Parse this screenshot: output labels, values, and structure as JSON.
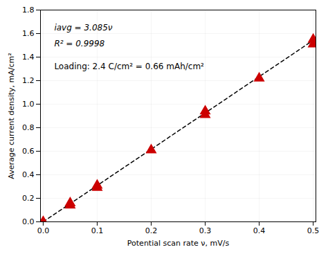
{
  "chart_data": {
    "type": "scatter",
    "xlabel": "Potential scan rate ν, mV/s",
    "ylabel": "Average current density, mA/cm²",
    "series": [
      {
        "type": "scatter",
        "x": [
          0.0,
          0.05,
          0.05,
          0.1,
          0.1,
          0.2,
          0.3,
          0.3,
          0.4,
          0.5,
          0.5
        ],
        "values": [
          0.0,
          0.14,
          0.16,
          0.29,
          0.31,
          0.61,
          0.91,
          0.94,
          1.22,
          1.51,
          1.55
        ],
        "color": "#cc0000",
        "marker": "triangle"
      },
      {
        "type": "line",
        "x": [
          0.0,
          0.5
        ],
        "values": [
          0.0,
          1.5425
        ],
        "color": "#000000",
        "line_style": "dashed"
      }
    ],
    "annotations": [
      "iavg = 3.085ν",
      "R² = 0.9998",
      "Loading: 2.4 C/cm² = 0.66 mAh/cm²"
    ],
    "xlim": [
      -0.005,
      0.505
    ],
    "ylim": [
      0.0,
      1.8
    ],
    "xticks": [
      {
        "value": 0,
        "label": "0.0"
      },
      0.1,
      0.2,
      0.3,
      0.4,
      0.5
    ],
    "yticks": [
      {
        "value": 0,
        "label": "0.0"
      },
      0.2,
      0.4,
      0.6,
      0.8,
      {
        "value": 1,
        "label": "1.0"
      },
      1.2,
      1.4,
      1.6,
      1.8
    ],
    "grid": true
  }
}
